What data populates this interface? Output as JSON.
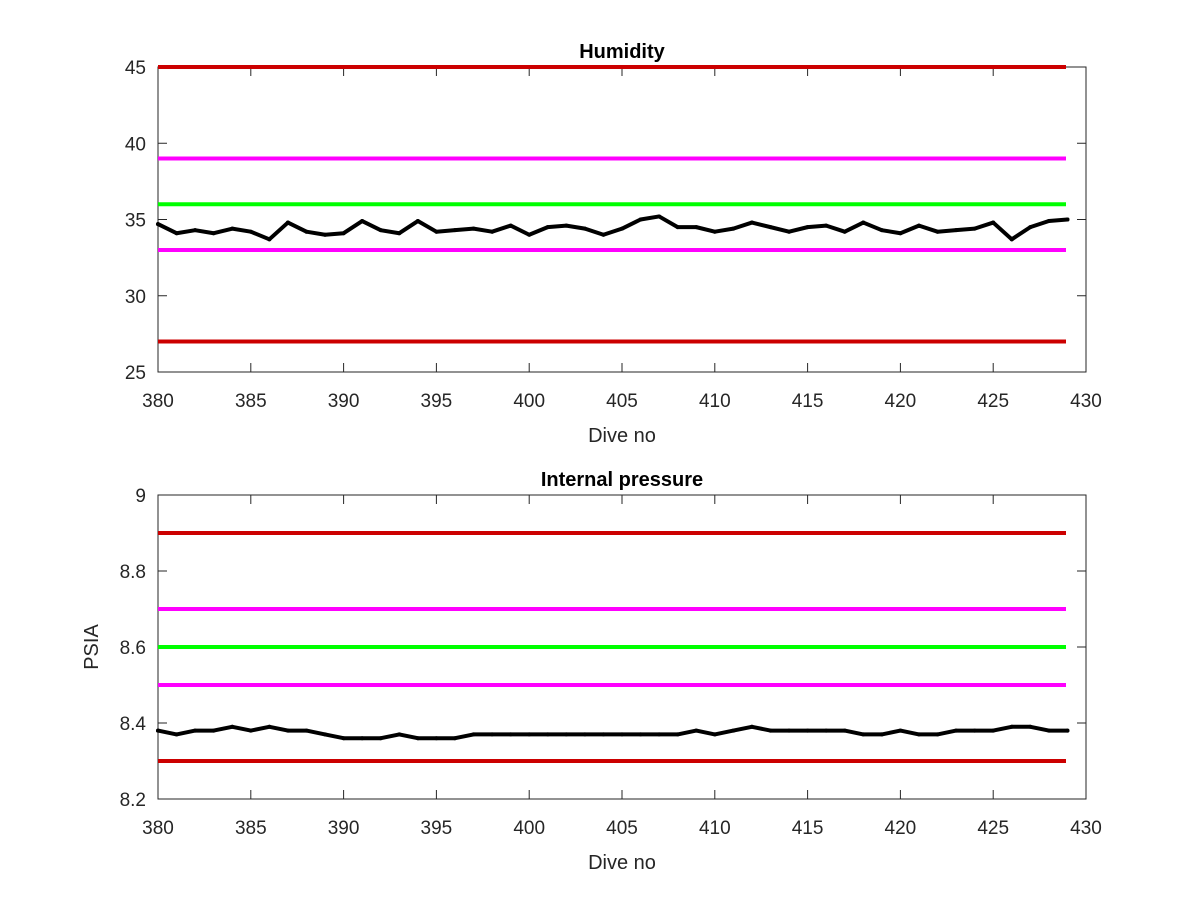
{
  "chart_data": [
    {
      "type": "line",
      "title": "Humidity",
      "xlabel": "Dive no",
      "ylabel": "",
      "xlim": [
        380,
        430
      ],
      "ylim": [
        25,
        45
      ],
      "xticks": [
        "380",
        "385",
        "390",
        "395",
        "400",
        "405",
        "410",
        "415",
        "420",
        "425",
        "430"
      ],
      "yticks": [
        "25",
        "30",
        "35",
        "40",
        "45"
      ],
      "grid": false,
      "x": [
        380,
        381,
        382,
        383,
        384,
        385,
        386,
        387,
        388,
        389,
        390,
        391,
        392,
        393,
        394,
        395,
        396,
        397,
        398,
        399,
        400,
        401,
        402,
        403,
        404,
        405,
        406,
        407,
        408,
        409,
        410,
        411,
        412,
        413,
        414,
        415,
        416,
        417,
        418,
        419,
        420,
        421,
        422,
        423,
        424,
        425,
        426,
        427,
        428,
        429
      ],
      "series": [
        {
          "color": "#000000",
          "values": [
            34.7,
            34.1,
            34.3,
            34.1,
            34.4,
            34.2,
            33.7,
            34.8,
            34.2,
            34.0,
            34.1,
            34.9,
            34.3,
            34.1,
            34.9,
            34.2,
            34.3,
            34.4,
            34.2,
            34.6,
            34.0,
            34.5,
            34.6,
            34.4,
            34.0,
            34.4,
            35.0,
            35.2,
            34.5,
            34.5,
            34.2,
            34.4,
            34.8,
            34.5,
            34.2,
            34.5,
            34.6,
            34.2,
            34.8,
            34.3,
            34.1,
            34.6,
            34.2,
            34.3,
            34.4,
            34.8,
            33.7,
            34.5,
            34.9,
            35.0
          ]
        }
      ],
      "thresholds": [
        {
          "value": 45,
          "color": "#cc0000"
        },
        {
          "value": 39,
          "color": "#ff00ff"
        },
        {
          "value": 36,
          "color": "#00ff00"
        },
        {
          "value": 33,
          "color": "#ff00ff"
        },
        {
          "value": 27,
          "color": "#cc0000"
        }
      ]
    },
    {
      "type": "line",
      "title": "Internal pressure",
      "xlabel": "Dive no",
      "ylabel": "PSIA",
      "xlim": [
        380,
        430
      ],
      "ylim": [
        8.2,
        9
      ],
      "xticks": [
        "380",
        "385",
        "390",
        "395",
        "400",
        "405",
        "410",
        "415",
        "420",
        "425",
        "430"
      ],
      "yticks": [
        "8.2",
        "8.4",
        "8.6",
        "8.8",
        "9"
      ],
      "grid": false,
      "x": [
        380,
        381,
        382,
        383,
        384,
        385,
        386,
        387,
        388,
        389,
        390,
        391,
        392,
        393,
        394,
        395,
        396,
        397,
        398,
        399,
        400,
        401,
        402,
        403,
        404,
        405,
        406,
        407,
        408,
        409,
        410,
        411,
        412,
        413,
        414,
        415,
        416,
        417,
        418,
        419,
        420,
        421,
        422,
        423,
        424,
        425,
        426,
        427,
        428,
        429
      ],
      "series": [
        {
          "color": "#000000",
          "values": [
            8.38,
            8.37,
            8.38,
            8.38,
            8.39,
            8.38,
            8.39,
            8.38,
            8.38,
            8.37,
            8.36,
            8.36,
            8.36,
            8.37,
            8.36,
            8.36,
            8.36,
            8.37,
            8.37,
            8.37,
            8.37,
            8.37,
            8.37,
            8.37,
            8.37,
            8.37,
            8.37,
            8.37,
            8.37,
            8.38,
            8.37,
            8.38,
            8.39,
            8.38,
            8.38,
            8.38,
            8.38,
            8.38,
            8.37,
            8.37,
            8.38,
            8.37,
            8.37,
            8.38,
            8.38,
            8.38,
            8.39,
            8.39,
            8.38,
            8.38
          ]
        }
      ],
      "thresholds": [
        {
          "value": 8.9,
          "color": "#cc0000"
        },
        {
          "value": 8.7,
          "color": "#ff00ff"
        },
        {
          "value": 8.6,
          "color": "#00ff00"
        },
        {
          "value": 8.5,
          "color": "#ff00ff"
        },
        {
          "value": 8.3,
          "color": "#cc0000"
        }
      ]
    }
  ]
}
